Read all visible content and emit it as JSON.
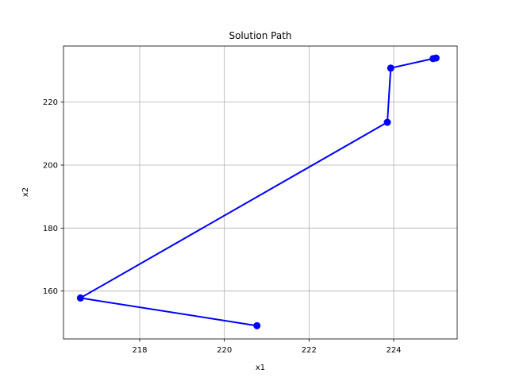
{
  "chart_data": {
    "type": "line",
    "title": "Solution Path",
    "xlabel": "x1",
    "ylabel": "x2",
    "xlim": [
      216.2,
      225.5
    ],
    "ylim": [
      144.8,
      237.8
    ],
    "xticks": [
      218,
      220,
      222,
      224
    ],
    "yticks": [
      160,
      180,
      200,
      220
    ],
    "grid": true,
    "series": [
      {
        "color": "#0000ff",
        "marker": "circle",
        "x": [
          220.77,
          216.6,
          223.85,
          223.93,
          224.93,
          225.0
        ],
        "y": [
          149.0,
          157.8,
          213.6,
          230.8,
          233.8,
          234.0
        ]
      }
    ]
  }
}
